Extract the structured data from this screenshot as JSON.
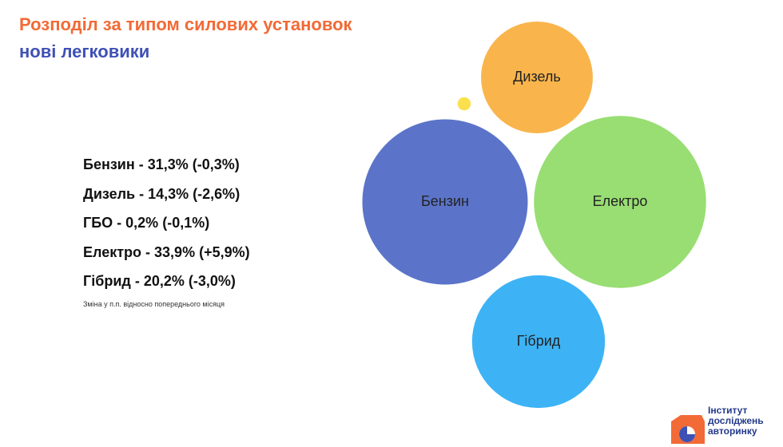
{
  "chart_data": {
    "type": "bubble",
    "title": "Розподіл за типом силових установок",
    "subtitle": "нові легковики",
    "categories": [
      "Бензин",
      "Дизель",
      "ГБО",
      "Електро",
      "Гібрид"
    ],
    "bubble_labels": [
      "Бензин",
      "Дизель",
      null,
      "Електро",
      "Гібрид"
    ],
    "values": [
      31.3,
      14.3,
      0.2,
      33.9,
      20.2
    ],
    "value_labels": [
      "31,3%",
      "14,3%",
      "0,2%",
      "33,9%",
      "20,2%"
    ],
    "changes": [
      -0.3,
      -2.6,
      -0.1,
      5.9,
      -3.0
    ],
    "change_labels": [
      "(-0,3%)",
      "(-2,6%)",
      "(-0,1%)",
      "(+5,9%)",
      "(-3,0%)"
    ],
    "colors": [
      "#5b74c9",
      "#f9b54c",
      "#fbe04e",
      "#98de73",
      "#3db3f5"
    ],
    "note": "Зміна у п.п. відносно попереднього місяця"
  },
  "logo": {
    "lines": [
      "Інститут",
      "досліджень",
      "авторинку"
    ]
  }
}
